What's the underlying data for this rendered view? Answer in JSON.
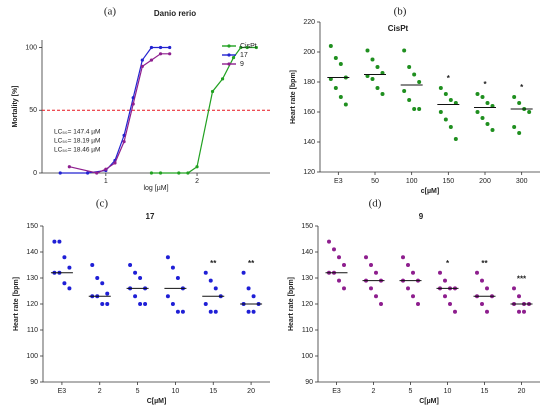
{
  "chart_data": [
    {
      "type": "doseresponse",
      "panel_label": "(a)",
      "title": "Danio rerio",
      "x_label": "log [µM]",
      "y_label": "Mortality [%]",
      "xlim": [
        0.3,
        2.8
      ],
      "xticks": [
        1,
        2
      ],
      "ylim": [
        0,
        106
      ],
      "yticks": [
        0,
        50,
        100
      ],
      "legend": "upper right",
      "reference_line": {
        "value": 50,
        "color": "#e8141b"
      },
      "series": [
        {
          "name": "CisPt",
          "color": "#21a121",
          "x": [
            1.5,
            1.6,
            1.8,
            1.9,
            2.0,
            2.17,
            2.28,
            2.4,
            2.48,
            2.55,
            2.65
          ],
          "values": [
            0,
            0,
            0,
            0,
            5,
            65,
            75,
            92,
            100,
            100,
            100
          ]
        },
        {
          "name": "17",
          "color": "#2323d0",
          "x": [
            0.5,
            0.8,
            1.0,
            1.1,
            1.2,
            1.3,
            1.4,
            1.5,
            1.6,
            1.7
          ],
          "values": [
            0,
            0,
            2,
            10,
            30,
            60,
            90,
            100,
            100,
            100
          ]
        },
        {
          "name": "9",
          "color": "#8e1e8e",
          "x": [
            0.6,
            0.9,
            1.0,
            1.1,
            1.2,
            1.3,
            1.4,
            1.5,
            1.6,
            1.7
          ],
          "values": [
            5,
            0,
            3,
            8,
            25,
            55,
            85,
            90,
            95,
            95
          ]
        }
      ],
      "annotations": [
        {
          "text": "LC₅₀= 147.4 µM",
          "color": "#21a121"
        },
        {
          "text": "LC₅₀= 18.19 µM",
          "color": "#2323d0"
        },
        {
          "text": "LC₅₀= 18.46 µM",
          "color": "#8e1e8e"
        }
      ]
    },
    {
      "type": "dotplot",
      "panel_label": "(b)",
      "title": "CisPt",
      "x_label": "c[µM]",
      "y_label": "Heart rate [bpm]",
      "color": "#1f8f1f",
      "ylim": [
        120,
        220
      ],
      "yticks": [
        120,
        140,
        160,
        180,
        200,
        220
      ],
      "categories": [
        "E3",
        "50",
        "100",
        "150",
        "200",
        "300"
      ],
      "points": [
        [
          204,
          196,
          192,
          183,
          182,
          176,
          170,
          165
        ],
        [
          201,
          195,
          190,
          186,
          184,
          182,
          176,
          172
        ],
        [
          201,
          190,
          185,
          180,
          174,
          168,
          162,
          162
        ],
        [
          176,
          172,
          168,
          166,
          160,
          155,
          150,
          142
        ],
        [
          172,
          170,
          166,
          164,
          160,
          156,
          152,
          148
        ],
        [
          170,
          166,
          162,
          160,
          150,
          146
        ]
      ],
      "medians": [
        183,
        185,
        178,
        165,
        163,
        162
      ],
      "annotations": [
        {
          "category": "150",
          "text": "*"
        },
        {
          "category": "200",
          "text": "*"
        },
        {
          "category": "300",
          "text": "*"
        }
      ]
    },
    {
      "type": "dotplot",
      "panel_label": "(c)",
      "title": "17",
      "x_label": "C[µM]",
      "y_label": "Heart rate [bpm]",
      "color": "#1f1fd6",
      "ylim": [
        90,
        150
      ],
      "yticks": [
        90,
        100,
        110,
        120,
        130,
        140,
        150
      ],
      "categories": [
        "E3",
        "2",
        "5",
        "10",
        "15",
        "20"
      ],
      "points": [
        [
          144,
          144,
          138,
          134,
          132,
          132,
          128,
          126
        ],
        [
          135,
          130,
          128,
          124,
          123,
          123,
          120,
          120
        ],
        [
          135,
          132,
          130,
          126,
          126,
          123,
          120,
          120
        ],
        [
          138,
          134,
          130,
          126,
          123,
          120,
          117,
          117
        ],
        [
          132,
          129,
          126,
          123,
          120,
          117,
          117
        ],
        [
          132,
          126,
          123,
          120,
          120,
          117,
          117
        ]
      ],
      "medians": [
        132,
        123,
        126,
        126,
        123,
        120
      ],
      "annotations": [
        {
          "category": "15",
          "text": "**"
        },
        {
          "category": "20",
          "text": "**"
        }
      ]
    },
    {
      "type": "dotplot",
      "panel_label": "(d)",
      "title": "9",
      "x_label": "C[µM]",
      "y_label": "Heart rate [bpm]",
      "color": "#8e1e8e",
      "ylim": [
        90,
        150
      ],
      "yticks": [
        90,
        100,
        110,
        120,
        130,
        140,
        150
      ],
      "categories": [
        "E3",
        "2",
        "5",
        "10",
        "15",
        "20"
      ],
      "points": [
        [
          144,
          141,
          138,
          135,
          132,
          132,
          129,
          126
        ],
        [
          138,
          135,
          132,
          129,
          129,
          126,
          123,
          120
        ],
        [
          138,
          135,
          132,
          129,
          129,
          126,
          123,
          120
        ],
        [
          132,
          129,
          126,
          126,
          126,
          123,
          120,
          117
        ],
        [
          132,
          129,
          126,
          123,
          123,
          120,
          117
        ],
        [
          126,
          123,
          120,
          120,
          120,
          117,
          117
        ]
      ],
      "medians": [
        132,
        129,
        129,
        126,
        123,
        120
      ],
      "annotations": [
        {
          "category": "10",
          "text": "*"
        },
        {
          "category": "15",
          "text": "**"
        },
        {
          "category": "20",
          "text": "***"
        }
      ]
    }
  ]
}
